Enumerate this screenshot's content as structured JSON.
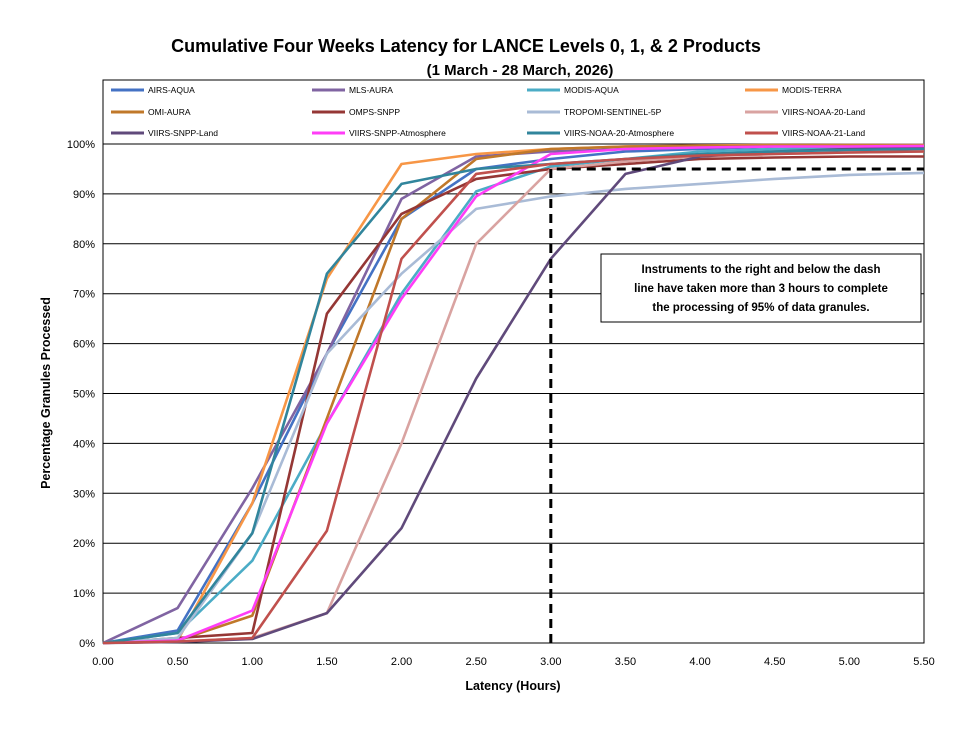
{
  "chart_data": {
    "type": "line",
    "title": "Cumulative Four Weeks Latency  for LANCE Levels 0, 1, & 2 Products",
    "subtitle": "(1  March   -  28  March,  2026)",
    "xlabel": "Latency (Hours)",
    "ylabel": "Percentage Granules Processed",
    "xlim": [
      0,
      5.5
    ],
    "ylim": [
      0,
      100
    ],
    "x_ticks": [
      "0.00",
      "0.50",
      "1.00",
      "1.50",
      "2.00",
      "2.50",
      "3.00",
      "3.50",
      "4.00",
      "4.50",
      "5.00",
      "5.50"
    ],
    "y_ticks": [
      "0%",
      "10%",
      "20%",
      "30%",
      "40%",
      "50%",
      "60%",
      "70%",
      "80%",
      "90%",
      "100%"
    ],
    "grid": "horizontal",
    "legend_position": "top",
    "x": [
      0,
      0.5,
      1,
      1.5,
      2,
      2.5,
      3,
      3.5,
      4,
      4.5,
      5,
      5.5
    ],
    "series": [
      {
        "name": "AIRS-AQUA",
        "color": "#4472C4",
        "values": [
          0,
          2.5,
          28,
          58,
          85,
          95,
          97,
          98.5,
          99,
          99.5,
          99.7,
          99.8
        ]
      },
      {
        "name": "MLS-AURA",
        "color": "#8064A2",
        "values": [
          0,
          7,
          31,
          58,
          89,
          97.5,
          98.5,
          99,
          99.5,
          99.7,
          99.8,
          99.8
        ]
      },
      {
        "name": "MODIS-AQUA",
        "color": "#4BACC6",
        "values": [
          0,
          2,
          16.5,
          44,
          70,
          90.5,
          95.5,
          97,
          98.5,
          99,
          99.2,
          99.3
        ]
      },
      {
        "name": "MODIS-TERRA",
        "color": "#F79646",
        "values": [
          0,
          0.5,
          28,
          73,
          96,
          98,
          99,
          99.5,
          99.7,
          99.8,
          99.8,
          99.8
        ]
      },
      {
        "name": "OMI-AURA",
        "color": "#C0782A",
        "values": [
          0,
          0.5,
          5.5,
          45,
          85,
          97,
          99,
          99.5,
          99.6,
          99.7,
          99.7,
          99.7
        ]
      },
      {
        "name": "OMPS-SNPP",
        "color": "#953735",
        "values": [
          0,
          1,
          2,
          66,
          86,
          93,
          95,
          96,
          97,
          97.3,
          97.5,
          97.5
        ]
      },
      {
        "name": "TROPOMI-SENTINEL-5P",
        "color": "#A9BBD6",
        "values": [
          0,
          1,
          22,
          58,
          74,
          87,
          89.5,
          91,
          92,
          93,
          93.8,
          94.2
        ]
      },
      {
        "name": "VIIRS-NOAA-20-Land",
        "color": "#D9A3A1",
        "values": [
          0,
          0.3,
          1,
          6,
          40,
          80,
          95,
          96.5,
          97.5,
          98,
          98.3,
          98.5
        ]
      },
      {
        "name": "VIIRS-SNPP-Land",
        "color": "#604A7B",
        "values": [
          0,
          0.2,
          0.8,
          6,
          23,
          53,
          77,
          94,
          97.5,
          98.5,
          99,
          99.2
        ]
      },
      {
        "name": "VIIRS-SNPP-Atmosphere",
        "color": "#FF3DF7",
        "values": [
          0,
          0.5,
          6.5,
          44,
          69,
          89.5,
          98,
          99,
          99.3,
          99.5,
          99.5,
          99.6
        ]
      },
      {
        "name": "VIIRS-NOAA-20-Atmosphere",
        "color": "#31859C",
        "values": [
          0,
          2,
          22,
          74,
          92,
          95,
          96,
          97,
          98,
          98.5,
          98.8,
          99
        ]
      },
      {
        "name": "VIIRS-NOAA-21-Land",
        "color": "#C0504D",
        "values": [
          0,
          0.3,
          1,
          22.5,
          77,
          94,
          96,
          97,
          97.7,
          98,
          98.3,
          98.5
        ]
      }
    ],
    "threshold_line": {
      "x": 3.0,
      "y": 95,
      "x_end": 5.5,
      "style": "dashed",
      "color": "#000000"
    },
    "annotation": {
      "lines": [
        "Instruments to the right and below the dash",
        "line have taken more than 3 hours to complete",
        "the processing of 95% of data granules."
      ]
    }
  }
}
